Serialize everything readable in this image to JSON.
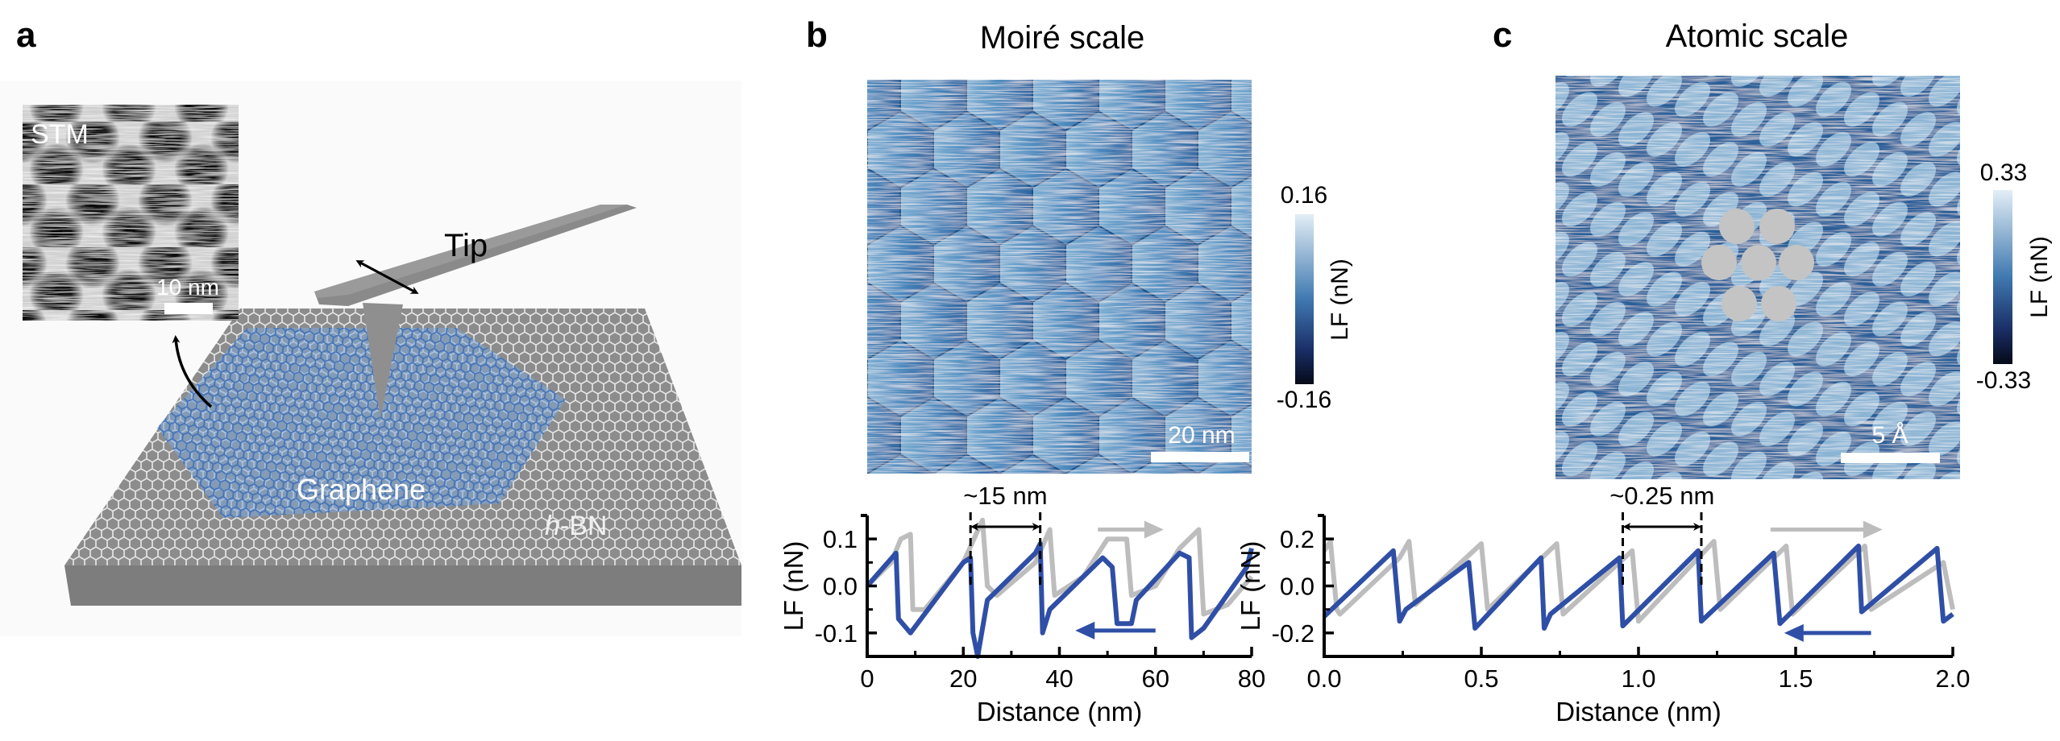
{
  "panels": {
    "a": {
      "label": "a",
      "inset_label": "STM",
      "inset_scalebar": "10 nm",
      "tip_label": "Tip",
      "graphene_label": "Graphene",
      "hbn_label_italic": "h",
      "hbn_label_rest": "-BN"
    },
    "b": {
      "label": "b",
      "title": "Moiré scale",
      "scalebar": "20 nm",
      "colorbar": {
        "max": "0.16",
        "min": "-0.16",
        "label": "LF (nN)"
      },
      "spacing_annotation": "~15 nm"
    },
    "c": {
      "label": "c",
      "title": "Atomic scale",
      "scalebar": "5 Å",
      "colorbar": {
        "max": "0.33",
        "min": "-0.33",
        "label": "LF (nN)"
      },
      "spacing_annotation": "~0.25 nm"
    }
  },
  "colors": {
    "forward": "#bdbdbd",
    "backward": "#2f4fa6",
    "map_light": "#e6f0f7",
    "map_dark": "#0b1a3a"
  },
  "chart_data": [
    {
      "type": "line",
      "panel": "b",
      "xlabel": "Distance (nm)",
      "ylabel": "LF (nN)",
      "xlim": [
        0,
        80
      ],
      "ylim": [
        -0.15,
        0.15
      ],
      "xticks": [
        "0",
        "20",
        "40",
        "60",
        "80"
      ],
      "xtick_values": [
        0,
        20,
        40,
        60,
        80
      ],
      "yticks": [
        "0.1",
        "0.0",
        "-0.1"
      ],
      "ytick_values": [
        0.1,
        0.0,
        -0.1
      ],
      "annotation_range": [
        21.5,
        36
      ],
      "series": [
        {
          "direction": "forward",
          "color": "#bdbdbd",
          "x": [
            0,
            5,
            7,
            9,
            9.5,
            12,
            20,
            24,
            25,
            27,
            35,
            38,
            39,
            45,
            50,
            54,
            55,
            60,
            65,
            69,
            70,
            75,
            80
          ],
          "y": [
            0,
            0.05,
            0.1,
            0.11,
            -0.05,
            -0.05,
            0.05,
            0.14,
            0.0,
            -0.02,
            0.05,
            0.12,
            -0.02,
            0.02,
            0.1,
            0.1,
            -0.02,
            0.0,
            0.08,
            0.12,
            -0.06,
            -0.04,
            0.02
          ]
        },
        {
          "direction": "backward",
          "color": "#2f4fa6",
          "x": [
            0,
            6,
            6.5,
            9,
            20,
            21.5,
            22,
            23,
            25,
            35,
            36,
            36.5,
            38,
            49,
            51,
            52,
            55,
            56,
            65,
            67,
            67.5,
            70,
            79,
            80
          ],
          "y": [
            0.0,
            0.07,
            -0.07,
            -0.1,
            0.05,
            0.06,
            -0.1,
            -0.15,
            -0.03,
            0.07,
            0.09,
            -0.1,
            -0.05,
            0.06,
            0.04,
            -0.08,
            -0.08,
            -0.03,
            0.07,
            0.06,
            -0.11,
            -0.09,
            0.04,
            0.08
          ]
        }
      ]
    },
    {
      "type": "line",
      "panel": "c",
      "xlabel": "Distance (nm)",
      "ylabel": "LF (nN)",
      "xlim": [
        0,
        2.0
      ],
      "ylim": [
        -0.3,
        0.3
      ],
      "xticks": [
        "0.0",
        "0.5",
        "1.0",
        "1.5",
        "2.0"
      ],
      "xtick_values": [
        0,
        0.5,
        1.0,
        1.5,
        2.0
      ],
      "yticks": [
        "0.2",
        "0.0",
        "-0.2"
      ],
      "ytick_values": [
        0.2,
        0.0,
        -0.2
      ],
      "annotation_range": [
        0.95,
        1.2
      ],
      "series": [
        {
          "direction": "forward",
          "color": "#bdbdbd",
          "x": [
            0,
            0.02,
            0.04,
            0.05,
            0.24,
            0.27,
            0.29,
            0.5,
            0.52,
            0.74,
            0.76,
            0.98,
            1.0,
            1.24,
            1.26,
            1.47,
            1.49,
            1.72,
            1.74,
            1.97,
            2.0
          ],
          "y": [
            0.15,
            0.19,
            -0.1,
            -0.12,
            0.12,
            0.19,
            -0.08,
            0.18,
            -0.1,
            0.18,
            -0.12,
            0.15,
            -0.15,
            0.19,
            -0.1,
            0.17,
            -0.12,
            0.17,
            -0.1,
            0.1,
            -0.1
          ]
        },
        {
          "direction": "backward",
          "color": "#2f4fa6",
          "x": [
            0,
            0.22,
            0.24,
            0.26,
            0.46,
            0.48,
            0.69,
            0.7,
            0.72,
            0.94,
            0.95,
            1.19,
            1.2,
            1.43,
            1.45,
            1.7,
            1.71,
            1.95,
            1.97,
            2.0
          ],
          "y": [
            -0.13,
            0.15,
            -0.15,
            -0.1,
            0.1,
            -0.18,
            0.12,
            -0.18,
            -0.12,
            0.12,
            -0.17,
            0.15,
            -0.15,
            0.14,
            -0.16,
            0.17,
            -0.11,
            0.16,
            -0.15,
            -0.12
          ]
        }
      ]
    }
  ]
}
